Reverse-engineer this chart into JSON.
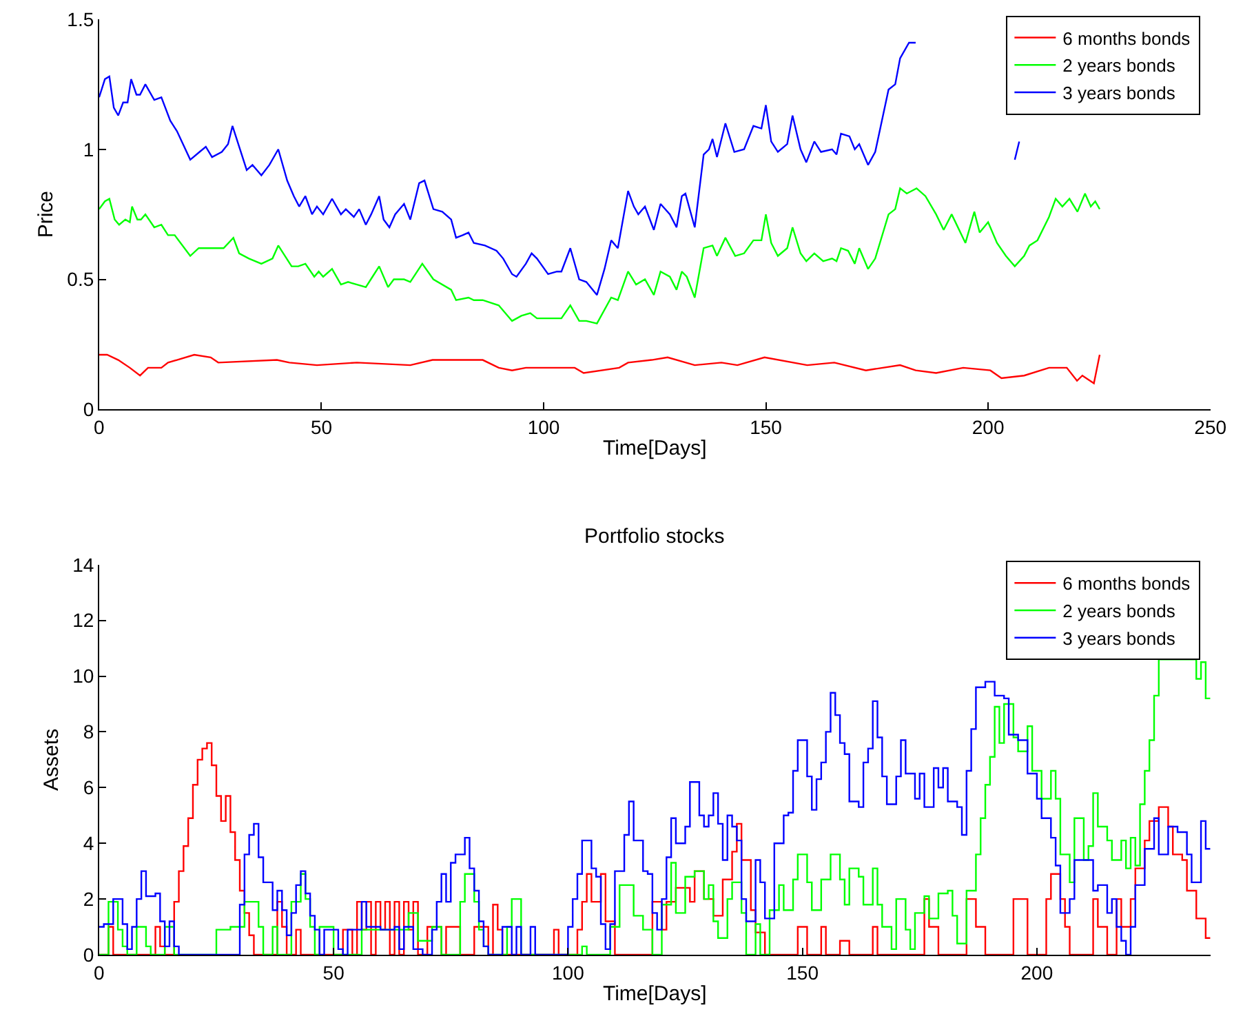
{
  "chart_data": [
    {
      "type": "line",
      "xlabel": "Time[Days]",
      "ylabel": "Price",
      "xlim": [
        0,
        250
      ],
      "xticks": [
        0,
        50,
        100,
        150,
        200,
        250
      ],
      "ylim": [
        0,
        1.5
      ],
      "yticks": [
        0,
        0.5,
        1,
        1.5
      ],
      "legend": "top right",
      "series": [
        {
          "name": "6 months bonds",
          "color": "#ff0000",
          "x": [
            0,
            1.8,
            4.3,
            6.9,
            9.2,
            11,
            14,
            15.5,
            17.5,
            21.4,
            25.1,
            26.8,
            40,
            42.8,
            49,
            58,
            70,
            75,
            86.3,
            89.9,
            92.9,
            96,
            107,
            109,
            117,
            119,
            124.3,
            127.9,
            134,
            140,
            143.6,
            149.7,
            159.3,
            165.4,
            172.5,
            180.2,
            183.7,
            188.3,
            194.4,
            200.5,
            203,
            208.1,
            213.7,
            217.7,
            220,
            221.2,
            223.8,
            225.1
          ],
          "values": [
            0.21,
            0.21,
            0.19,
            0.16,
            0.13,
            0.16,
            0.16,
            0.18,
            0.19,
            0.21,
            0.2,
            0.18,
            0.19,
            0.18,
            0.17,
            0.18,
            0.17,
            0.19,
            0.19,
            0.16,
            0.15,
            0.16,
            0.16,
            0.14,
            0.16,
            0.18,
            0.19,
            0.2,
            0.17,
            0.18,
            0.17,
            0.2,
            0.17,
            0.18,
            0.15,
            0.17,
            0.15,
            0.14,
            0.16,
            0.15,
            0.12,
            0.13,
            0.16,
            0.16,
            0.11,
            0.13,
            0.1,
            0.21
          ]
        },
        {
          "name": "2 years bonds",
          "color": "#00ff00",
          "x": [
            0,
            1.3,
            2.3,
            3.5,
            4.5,
            5.9,
            6.9,
            7.4,
            8.6,
            9.4,
            10.4,
            12.4,
            14,
            15.5,
            17,
            20.5,
            22.4,
            24,
            26.6,
            28,
            30.2,
            31.5,
            33.7,
            36.5,
            39,
            40.3,
            43.3,
            44.8,
            46.4,
            48.4,
            49.4,
            50.4,
            52.4,
            54.4,
            56,
            58,
            60,
            61.5,
            63,
            65,
            66.3,
            68.6,
            70,
            72.7,
            75.2,
            79.2,
            80.3,
            83.1,
            84.3,
            86.3,
            89.9,
            92.9,
            95,
            97,
            98.5,
            101,
            104,
            106,
            108,
            109.6,
            112,
            115.2,
            116.7,
            119,
            120.8,
            122.8,
            124.8,
            126.3,
            128.4,
            129.9,
            131.1,
            132.2,
            134,
            136,
            138,
            139,
            140.9,
            143.1,
            145.1,
            147.2,
            149,
            150,
            151.2,
            152.7,
            154.8,
            156,
            157.8,
            159.1,
            160.9,
            162.9,
            164.9,
            165.9,
            166.9,
            168.5,
            170,
            171,
            173,
            174.6,
            177.6,
            179.1,
            180.2,
            181.7,
            183.9,
            185.9,
            188.3,
            190,
            191.8,
            194.9,
            196.9,
            198.1,
            200,
            202,
            204,
            206,
            208.1,
            209.3,
            211.1,
            213.7,
            215.2,
            216.7,
            218.3,
            220.1,
            221.8,
            223.1,
            224.1,
            225.1
          ],
          "values": [
            0.77,
            0.8,
            0.81,
            0.73,
            0.71,
            0.73,
            0.72,
            0.78,
            0.73,
            0.73,
            0.75,
            0.7,
            0.71,
            0.67,
            0.67,
            0.59,
            0.62,
            0.62,
            0.62,
            0.62,
            0.66,
            0.6,
            0.58,
            0.56,
            0.58,
            0.63,
            0.55,
            0.55,
            0.56,
            0.51,
            0.53,
            0.51,
            0.54,
            0.48,
            0.49,
            0.48,
            0.47,
            0.51,
            0.55,
            0.47,
            0.5,
            0.5,
            0.49,
            0.56,
            0.5,
            0.46,
            0.42,
            0.43,
            0.42,
            0.42,
            0.4,
            0.34,
            0.36,
            0.37,
            0.35,
            0.35,
            0.35,
            0.4,
            0.34,
            0.34,
            0.33,
            0.43,
            0.42,
            0.53,
            0.48,
            0.5,
            0.44,
            0.53,
            0.51,
            0.46,
            0.53,
            0.51,
            0.43,
            0.62,
            0.63,
            0.59,
            0.66,
            0.59,
            0.6,
            0.65,
            0.65,
            0.75,
            0.64,
            0.59,
            0.62,
            0.7,
            0.6,
            0.57,
            0.6,
            0.57,
            0.58,
            0.57,
            0.62,
            0.61,
            0.56,
            0.62,
            0.54,
            0.58,
            0.75,
            0.77,
            0.85,
            0.83,
            0.85,
            0.82,
            0.75,
            0.69,
            0.75,
            0.64,
            0.76,
            0.68,
            0.72,
            0.64,
            0.59,
            0.55,
            0.59,
            0.63,
            0.65,
            0.74,
            0.81,
            0.78,
            0.81,
            0.76,
            0.83,
            0.78,
            0.8,
            0.77
          ]
        },
        {
          "name": "3 years bonds",
          "color": "#0000ff",
          "x": [
            0,
            1.3,
            2.3,
            3.3,
            4.3,
            5.4,
            6.4,
            7.2,
            8.4,
            9.2,
            10.4,
            12.4,
            14,
            16,
            17.5,
            20.5,
            22.6,
            24,
            25.4,
            27.6,
            29,
            30,
            31.7,
            33.2,
            34.5,
            36.5,
            38.3,
            40.3,
            42.3,
            43.8,
            45,
            46.4,
            47.9,
            49,
            50.4,
            52.4,
            54.4,
            55.5,
            57.3,
            58.5,
            60,
            61.2,
            63,
            64,
            65.3,
            66.6,
            68.6,
            70,
            72,
            73.2,
            75.2,
            77.2,
            79.2,
            80.3,
            81.8,
            83.1,
            84.3,
            86.8,
            89.4,
            90.9,
            92.9,
            93.9,
            96,
            97.3,
            98.5,
            101,
            103,
            104,
            106,
            108,
            109.6,
            112,
            113.7,
            115.2,
            116.7,
            119,
            120.3,
            121.3,
            122.8,
            124.8,
            126.3,
            128.4,
            129.9,
            131.1,
            131.9,
            134,
            136,
            137.2,
            138,
            139,
            140.9,
            142.9,
            145.1,
            147.2,
            149,
            150,
            151.2,
            152.7,
            154.8,
            156,
            157.8,
            159.1,
            160.9,
            162.4,
            164.9,
            165.9,
            166.9,
            168.8,
            170,
            171,
            173,
            174.6,
            177.6,
            179.1,
            180.2,
            182.2,
            183.7,
            185,
            206,
            207
          ],
          "values": [
            1.2,
            1.27,
            1.28,
            1.16,
            1.13,
            1.18,
            1.18,
            1.27,
            1.21,
            1.21,
            1.25,
            1.19,
            1.2,
            1.11,
            1.07,
            0.96,
            0.99,
            1.01,
            0.97,
            0.99,
            1.02,
            1.09,
            1.0,
            0.92,
            0.94,
            0.9,
            0.94,
            1.0,
            0.88,
            0.82,
            0.78,
            0.82,
            0.75,
            0.78,
            0.75,
            0.81,
            0.75,
            0.77,
            0.74,
            0.77,
            0.71,
            0.75,
            0.82,
            0.73,
            0.7,
            0.75,
            0.79,
            0.73,
            0.87,
            0.88,
            0.77,
            0.76,
            0.73,
            0.66,
            0.67,
            0.68,
            0.64,
            0.63,
            0.61,
            0.58,
            0.52,
            0.51,
            0.56,
            0.6,
            0.58,
            0.52,
            0.53,
            0.53,
            0.62,
            0.5,
            0.49,
            0.44,
            0.54,
            0.65,
            0.62,
            0.84,
            0.78,
            0.75,
            0.78,
            0.69,
            0.79,
            0.75,
            0.7,
            0.82,
            0.83,
            0.7,
            0.98,
            1.0,
            1.04,
            0.97,
            1.1,
            0.99,
            1.0,
            1.09,
            1.08,
            1.17,
            1.03,
            0.99,
            1.02,
            1.13,
            1.0,
            0.95,
            1.03,
            0.99,
            1.0,
            0.98,
            1.06,
            1.05,
            1.0,
            1.02,
            0.94,
            0.99,
            1.23,
            1.25,
            1.35,
            1.41,
            1.41,
            null,
            0.96,
            1.03
          ]
        }
      ]
    },
    {
      "type": "step",
      "title": "Portfolio stocks",
      "xlabel": "Time[Days]",
      "ylabel": "Assets",
      "xlim": [
        0,
        237
      ],
      "xticks": [
        0,
        50,
        100,
        150,
        200
      ],
      "ylim": [
        0,
        14
      ],
      "yticks": [
        0,
        2,
        4,
        6,
        8,
        10,
        12,
        14
      ],
      "legend": "top right",
      "series": [
        {
          "name": "6 months bonds",
          "color": "#ff0000",
          "x": [
            0,
            2,
            3,
            12,
            13,
            14,
            16,
            17,
            18,
            19,
            20,
            21,
            22,
            23,
            24,
            25,
            26,
            27,
            28,
            29,
            30,
            31,
            32,
            33,
            38,
            39,
            40,
            42,
            43,
            52,
            54,
            55,
            56,
            57,
            58,
            59,
            60,
            61,
            62,
            63,
            64,
            65,
            66,
            67,
            68,
            70,
            73,
            74,
            77,
            80,
            83,
            84,
            85,
            86,
            97,
            98,
            102,
            103,
            104,
            105,
            107,
            108,
            110,
            118,
            120,
            121,
            123,
            126,
            127,
            129,
            131,
            133,
            135,
            136,
            137,
            139,
            140,
            142,
            149,
            151,
            154,
            155,
            158,
            160,
            165,
            166,
            176,
            177,
            179,
            185,
            187,
            189,
            195,
            198,
            202,
            203,
            205,
            206,
            207,
            212,
            213,
            215,
            217,
            218,
            220,
            221,
            223,
            224,
            226,
            228,
            229,
            231,
            232,
            234,
            236,
            237
          ],
          "values": [
            0,
            1,
            0,
            1,
            0.3,
            0,
            1.9,
            3,
            3.9,
            4.9,
            6.1,
            7,
            7.4,
            7.6,
            6.8,
            5.7,
            4.8,
            5.7,
            4.4,
            3.4,
            2.3,
            1.5,
            0.7,
            0,
            1.9,
            1,
            0,
            0.9,
            0,
            0.9,
            0,
            1.9,
            0.9,
            1.9,
            0,
            1.9,
            0.9,
            1.9,
            0,
            1.9,
            0,
            1.9,
            0.9,
            1.9,
            0,
            1,
            0,
            1,
            0,
            1,
            0,
            1.8,
            0.9,
            0,
            0.9,
            0,
            0.9,
            1.9,
            2.9,
            1.9,
            2.9,
            1.2,
            0,
            1.9,
            0.9,
            1.9,
            2.4,
            1.9,
            3,
            2,
            1.4,
            2.7,
            3.7,
            4.7,
            3.4,
            1.6,
            0.8,
            0,
            1,
            0,
            1,
            0,
            0.5,
            0,
            1,
            0,
            2,
            1,
            0,
            2,
            1,
            0,
            2,
            0,
            2,
            2.9,
            2,
            1,
            0,
            2,
            1,
            0,
            2,
            1,
            2,
            3.1,
            4.1,
            4.8,
            5.3,
            4.6,
            3.6,
            3.4,
            2.3,
            1.3,
            0.6,
            0.6
          ]
        },
        {
          "name": "2 years bonds",
          "color": "#00ff00",
          "x": [
            0,
            2,
            4,
            5,
            6,
            8,
            10,
            11,
            14,
            16,
            25,
            28,
            31,
            34,
            35,
            37,
            38,
            41,
            43,
            44,
            45,
            46,
            47,
            50,
            56,
            66,
            68,
            71,
            73,
            77,
            78,
            80,
            81,
            82,
            83,
            87,
            88,
            90,
            103,
            104,
            109,
            111,
            114,
            116,
            118,
            120,
            122,
            123,
            125,
            127,
            129,
            130,
            131,
            132,
            134,
            135,
            137,
            138,
            140,
            141,
            143,
            145,
            146,
            148,
            149,
            151,
            152,
            154,
            156,
            158,
            159,
            160,
            162,
            163,
            165,
            166,
            167,
            169,
            170,
            172,
            173,
            174,
            176,
            177,
            179,
            181,
            182,
            183,
            185,
            187,
            188,
            189,
            190,
            191,
            192,
            193,
            195,
            196,
            198,
            199,
            201,
            203,
            204,
            205,
            207,
            208,
            210,
            211,
            212,
            213,
            215,
            216,
            218,
            219,
            220,
            221,
            222,
            223,
            224,
            225,
            226,
            234,
            235,
            236,
            237
          ],
          "values": [
            0,
            1.9,
            0.9,
            0.3,
            0,
            1,
            0.3,
            0,
            1,
            0,
            0.9,
            1,
            1.9,
            1,
            0,
            1,
            0,
            1.9,
            2.9,
            2,
            1,
            0,
            1,
            0,
            0.9,
            1.5,
            0.5,
            1,
            0,
            1.9,
            2.9,
            1.9,
            0.9,
            0.3,
            0,
            1,
            2,
            0,
            0.3,
            0,
            1,
            2.5,
            1.4,
            0.9,
            0,
            1.8,
            3.3,
            1.5,
            2.8,
            3,
            2,
            2.5,
            1.2,
            0.6,
            2,
            2.6,
            1.5,
            0,
            1.1,
            0,
            1.6,
            2.5,
            1.6,
            2.7,
            3.6,
            2.6,
            1.6,
            2.7,
            3.6,
            2.7,
            1.8,
            3.1,
            2.8,
            1.8,
            3.1,
            1.8,
            1,
            0.2,
            2,
            0.9,
            0.2,
            1.5,
            2.1,
            1.3,
            2.2,
            2.3,
            1.4,
            0.4,
            2.3,
            3.6,
            4.9,
            6.1,
            7.1,
            8.9,
            7.6,
            9,
            7.8,
            7.3,
            8.2,
            6.6,
            5.6,
            6.6,
            5.6,
            3.6,
            2.6,
            4.9,
            3.4,
            3.9,
            5.8,
            4.6,
            4.1,
            3.4,
            4.1,
            3.1,
            4.2,
            3.2,
            5.4,
            6.6,
            7.7,
            9.3,
            10.6,
            9.9,
            10.5,
            9.2,
            9.2
          ]
        },
        {
          "name": "3 years bonds",
          "color": "#0000ff",
          "x": [
            0,
            1,
            3,
            5,
            6,
            7,
            8,
            9,
            10,
            12,
            13,
            14,
            15,
            16,
            17,
            30,
            31,
            32,
            33,
            34,
            35,
            37,
            38,
            39,
            40,
            41,
            42,
            43,
            44,
            45,
            46,
            47,
            48,
            50,
            51,
            52,
            53,
            56,
            57,
            60,
            63,
            64,
            65,
            67,
            69,
            71,
            72,
            73,
            74,
            75,
            76,
            78,
            79,
            80,
            81,
            82,
            83,
            86,
            88,
            89,
            90,
            92,
            93,
            100,
            101,
            102,
            103,
            105,
            106,
            107,
            108,
            109,
            110,
            112,
            113,
            114,
            116,
            117,
            118,
            119,
            120,
            121,
            122,
            123,
            125,
            126,
            128,
            129,
            130,
            131,
            132,
            133,
            134,
            135,
            136,
            137,
            138,
            140,
            141,
            142,
            144,
            146,
            147,
            148,
            149,
            151,
            152,
            153,
            154,
            155,
            156,
            157,
            158,
            159,
            160,
            162,
            163,
            164,
            165,
            166,
            167,
            168,
            170,
            171,
            172,
            174,
            175,
            176,
            178,
            179,
            180,
            181,
            183,
            184,
            185,
            186,
            187,
            189,
            191,
            193,
            194,
            196,
            198,
            200,
            201,
            203,
            204,
            205,
            207,
            208,
            210,
            212,
            213,
            215,
            216,
            217,
            218,
            219,
            220,
            221,
            223,
            225,
            226,
            228,
            230,
            232,
            233,
            235,
            236,
            237
          ],
          "values": [
            1,
            1.1,
            2,
            1.1,
            0.2,
            1,
            2,
            3,
            2.1,
            2.2,
            1.2,
            0.3,
            1.2,
            0.3,
            0,
            1.8,
            3.6,
            4.3,
            4.7,
            3.5,
            2.6,
            1.6,
            2.3,
            1.6,
            0.7,
            1.5,
            2.5,
            3,
            2.2,
            1.4,
            0.9,
            0,
            0.9,
            0.9,
            0.2,
            0,
            0.9,
            1.9,
            1,
            0.9,
            1,
            0.2,
            1,
            0.2,
            0,
            0.9,
            1.9,
            2.9,
            1.9,
            3.3,
            3.6,
            4.2,
            3.1,
            2.3,
            1.2,
            0.3,
            0,
            1,
            0,
            1,
            0,
            1,
            0,
            1,
            2,
            2.9,
            4.1,
            3.1,
            2.8,
            1.1,
            0.2,
            1.1,
            3,
            4.3,
            5.5,
            4.1,
            3,
            2.9,
            1.5,
            0.9,
            2,
            3.5,
            4.9,
            4,
            4.6,
            6.2,
            5,
            4.6,
            5,
            5.8,
            4.7,
            3.4,
            5,
            4.6,
            4.1,
            2,
            1.2,
            3.4,
            2.6,
            1.3,
            4,
            5,
            5.1,
            6.6,
            7.7,
            6.4,
            5.2,
            6.3,
            6.9,
            8,
            9.4,
            8.6,
            7.6,
            7.2,
            5.5,
            5.3,
            6.9,
            7.4,
            9.1,
            7.8,
            6.4,
            5.4,
            6.4,
            7.7,
            6.5,
            5.6,
            6.5,
            5.3,
            6.7,
            6,
            6.7,
            5.5,
            5.3,
            4.3,
            6.6,
            8.1,
            9.6,
            9.8,
            9.3,
            9.2,
            7.9,
            7.7,
            6.5,
            5.6,
            4.9,
            4.2,
            3.2,
            1.5,
            2,
            3.4,
            3.4,
            2.3,
            2.5,
            1.5,
            2,
            1,
            0.5,
            0,
            1,
            2.5,
            3.8,
            4.9,
            3.6,
            4.6,
            4.4,
            3.6,
            2.6,
            4.8,
            3.8,
            3.8
          ]
        }
      ]
    }
  ]
}
